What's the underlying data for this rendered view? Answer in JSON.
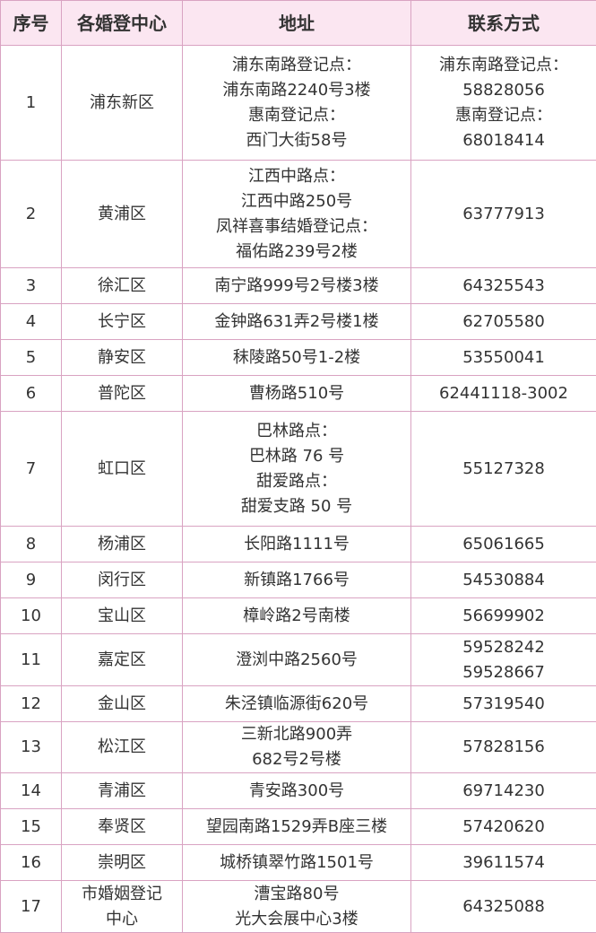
{
  "table": {
    "header": [
      "序号",
      "各婚登中心",
      "地址",
      "联系方式"
    ],
    "rows": [
      [
        [
          "1"
        ],
        [
          "浦东新区"
        ],
        [
          "浦东南路登记点：",
          "浦东南路2240号3楼",
          "惠南登记点：",
          "西门大街58号"
        ],
        [
          "浦东南路登记点：",
          "58828056",
          "惠南登记点：",
          "68018414"
        ]
      ],
      [
        [
          "2"
        ],
        [
          "黄浦区"
        ],
        [
          "江西中路点：",
          "江西中路250号",
          "凤祥喜事结婚登记点：",
          "福佑路239号2楼"
        ],
        [
          "63777913"
        ]
      ],
      [
        [
          "3"
        ],
        [
          "徐汇区"
        ],
        [
          "南宁路999号2号楼3楼"
        ],
        [
          "64325543"
        ]
      ],
      [
        [
          "4"
        ],
        [
          "长宁区"
        ],
        [
          "金钟路631弄2号楼1楼"
        ],
        [
          "62705580"
        ]
      ],
      [
        [
          "5"
        ],
        [
          "静安区"
        ],
        [
          "秣陵路50号1-2楼"
        ],
        [
          "53550041"
        ]
      ],
      [
        [
          "6"
        ],
        [
          "普陀区"
        ],
        [
          "曹杨路510号"
        ],
        [
          "62441118-3002"
        ]
      ],
      [
        [
          "7"
        ],
        [
          "虹口区"
        ],
        [
          "巴林路点：",
          "巴林路 76 号",
          "甜爱路点：",
          "甜爱支路 50 号"
        ],
        [
          "55127328"
        ]
      ],
      [
        [
          "8"
        ],
        [
          "杨浦区"
        ],
        [
          "长阳路1111号"
        ],
        [
          "65061665"
        ]
      ],
      [
        [
          "9"
        ],
        [
          "闵行区"
        ],
        [
          "新镇路1766号"
        ],
        [
          "54530884"
        ]
      ],
      [
        [
          "10"
        ],
        [
          "宝山区"
        ],
        [
          "樟岭路2号南楼"
        ],
        [
          "56699902"
        ]
      ],
      [
        [
          "11"
        ],
        [
          "嘉定区"
        ],
        [
          "澄浏中路2560号"
        ],
        [
          "59528242",
          "59528667"
        ]
      ],
      [
        [
          "12"
        ],
        [
          "金山区"
        ],
        [
          "朱泾镇临源街620号"
        ],
        [
          "57319540"
        ]
      ],
      [
        [
          "13"
        ],
        [
          "松江区"
        ],
        [
          "三新北路900弄",
          "682号2号楼"
        ],
        [
          "57828156"
        ]
      ],
      [
        [
          "14"
        ],
        [
          "青浦区"
        ],
        [
          "青安路300号"
        ],
        [
          "69714230"
        ]
      ],
      [
        [
          "15"
        ],
        [
          "奉贤区"
        ],
        [
          "望园南路1529弄B座三楼"
        ],
        [
          "57420620"
        ]
      ],
      [
        [
          "16"
        ],
        [
          "崇明区"
        ],
        [
          "城桥镇翠竹路1501号"
        ],
        [
          "39611574"
        ]
      ],
      [
        [
          "17"
        ],
        [
          "市婚姻登记",
          "中心"
        ],
        [
          "漕宝路80号",
          "光大会展中心3楼"
        ],
        [
          "64325088"
        ]
      ]
    ]
  }
}
